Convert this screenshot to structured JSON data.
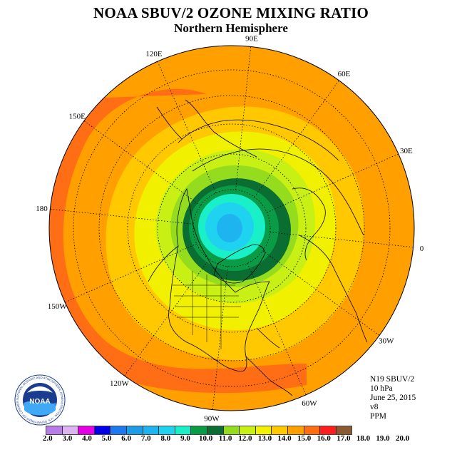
{
  "title": "NOAA SBUV/2 OZONE MIXING RATIO",
  "subtitle": "Northern Hemisphere",
  "longitude_labels": [
    "90E",
    "60E",
    "30E",
    "0",
    "30W",
    "60W",
    "90W",
    "120W",
    "150W",
    "180",
    "150E",
    "120E"
  ],
  "info": {
    "instrument": "N19 SBUV/2",
    "level": "10 hPa",
    "date": "June 25, 2015",
    "version": "v8",
    "units": "PPM"
  },
  "colorbar": {
    "ticks": [
      "2.0",
      "3.0",
      "4.0",
      "5.0",
      "6.0",
      "7.0",
      "8.0",
      "9.0",
      "10.0",
      "11.0",
      "12.0",
      "13.0",
      "14.0",
      "15.0",
      "16.0",
      "17.0",
      "18.0",
      "19.0",
      "20.0"
    ],
    "colors": [
      "#b77ce8",
      "#dcb4f2",
      "#e600e6",
      "#0000e6",
      "#1e78f0",
      "#1e9ce6",
      "#1eb4f0",
      "#1ed2f0",
      "#19f0c8",
      "#0a9b46",
      "#0a6e32",
      "#96dc1e",
      "#c8f014",
      "#f0f000",
      "#ffc800",
      "#ffa000",
      "#ff6e14",
      "#ff1e1e",
      "#8c5a32"
    ]
  },
  "logo": {
    "text": "NOAA",
    "ring_text": "NATIONAL OCEANIC AND ATMOSPHERIC ADMINISTRATION · U.S. DEPARTMENT OF COMMERCE"
  }
}
